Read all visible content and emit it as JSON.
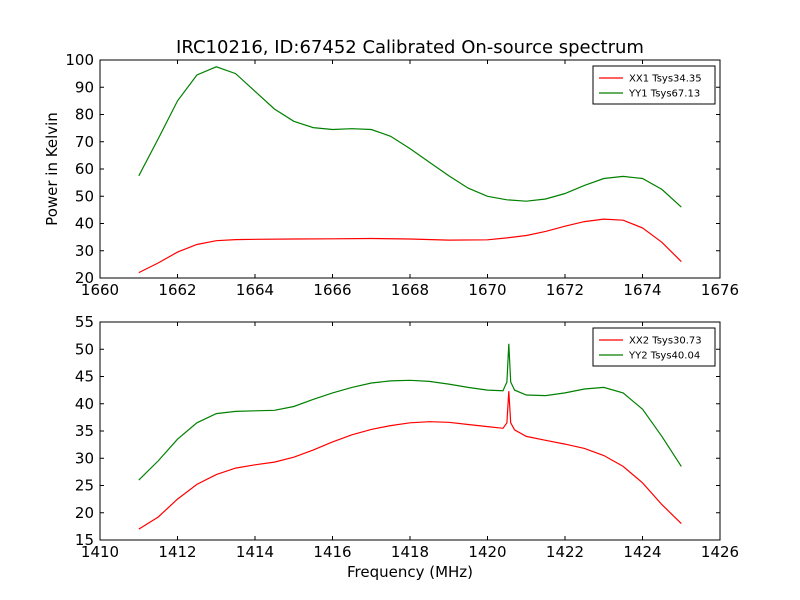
{
  "figure": {
    "title": "IRC10216, ID:67452 Calibrated On-source spectrum"
  },
  "colors": {
    "red": "#ff0000",
    "green": "#008000"
  },
  "chart_data": [
    {
      "type": "line",
      "title": "IRC10216, ID:67452 Calibrated On-source spectrum",
      "xlabel": "",
      "ylabel": "Power in Kelvin",
      "xlim": [
        1660,
        1676
      ],
      "ylim": [
        20,
        100
      ],
      "xticks": [
        "1660",
        "1662",
        "1664",
        "1666",
        "1668",
        "1670",
        "1672",
        "1674",
        "1676"
      ],
      "yticks": [
        "20",
        "30",
        "40",
        "50",
        "60",
        "70",
        "80",
        "90",
        "100"
      ],
      "grid": false,
      "legend_position": "top-right",
      "series": [
        {
          "name": "XX1 Tsys34.35",
          "color": "#ff0000",
          "x": [
            1661.0,
            1661.5,
            1662.0,
            1662.5,
            1663.0,
            1663.5,
            1664.0,
            1665.0,
            1666.0,
            1667.0,
            1668.0,
            1669.0,
            1670.0,
            1670.5,
            1671.0,
            1671.5,
            1672.0,
            1672.5,
            1673.0,
            1673.5,
            1674.0,
            1674.5,
            1675.0
          ],
          "y": [
            22.0,
            25.5,
            29.5,
            32.3,
            33.7,
            34.1,
            34.2,
            34.3,
            34.4,
            34.5,
            34.3,
            33.9,
            34.0,
            34.7,
            35.6,
            37.1,
            39.0,
            40.7,
            41.6,
            41.2,
            38.4,
            33.1,
            26.0
          ]
        },
        {
          "name": "YY1 Tsys67.13",
          "color": "#008000",
          "x": [
            1661.0,
            1661.5,
            1662.0,
            1662.5,
            1663.0,
            1663.5,
            1664.0,
            1664.5,
            1665.0,
            1665.5,
            1666.0,
            1666.5,
            1667.0,
            1667.5,
            1668.0,
            1668.5,
            1669.0,
            1669.5,
            1670.0,
            1670.5,
            1671.0,
            1671.5,
            1672.0,
            1672.5,
            1673.0,
            1673.5,
            1674.0,
            1674.5,
            1675.0
          ],
          "y": [
            57.5,
            71.0,
            85.0,
            94.5,
            97.5,
            95.0,
            88.5,
            82.0,
            77.5,
            75.2,
            74.5,
            74.8,
            74.5,
            72.0,
            67.5,
            62.5,
            57.5,
            53.0,
            50.0,
            48.7,
            48.2,
            49.0,
            51.0,
            54.0,
            56.5,
            57.3,
            56.5,
            52.5,
            46.0
          ]
        }
      ]
    },
    {
      "type": "line",
      "title": "",
      "xlabel": "Frequency (MHz)",
      "ylabel": "",
      "xlim": [
        1410,
        1426
      ],
      "ylim": [
        15,
        55
      ],
      "xticks": [
        "1410",
        "1412",
        "1414",
        "1416",
        "1418",
        "1420",
        "1422",
        "1424",
        "1426"
      ],
      "yticks": [
        "15",
        "20",
        "25",
        "30",
        "35",
        "40",
        "45",
        "50",
        "55"
      ],
      "grid": false,
      "legend_position": "top-right",
      "series": [
        {
          "name": "XX2 Tsys30.73",
          "color": "#ff0000",
          "x": [
            1411.0,
            1411.5,
            1412.0,
            1412.5,
            1413.0,
            1413.5,
            1414.0,
            1414.5,
            1415.0,
            1415.5,
            1416.0,
            1416.5,
            1417.0,
            1417.5,
            1418.0,
            1418.5,
            1419.0,
            1419.5,
            1420.0,
            1420.4,
            1420.5,
            1420.55,
            1420.6,
            1420.7,
            1421.0,
            1421.5,
            1422.0,
            1422.5,
            1423.0,
            1423.5,
            1424.0,
            1424.5,
            1425.0
          ],
          "y": [
            17.0,
            19.2,
            22.5,
            25.2,
            27.0,
            28.2,
            28.8,
            29.3,
            30.2,
            31.5,
            33.0,
            34.3,
            35.3,
            36.0,
            36.5,
            36.7,
            36.6,
            36.2,
            35.8,
            35.5,
            36.5,
            42.3,
            36.5,
            35.2,
            34.0,
            33.3,
            32.6,
            31.8,
            30.5,
            28.5,
            25.5,
            21.5,
            18.0
          ]
        },
        {
          "name": "YY2 Tsys40.04",
          "color": "#008000",
          "x": [
            1411.0,
            1411.5,
            1412.0,
            1412.5,
            1413.0,
            1413.5,
            1414.0,
            1414.5,
            1415.0,
            1415.5,
            1416.0,
            1416.5,
            1417.0,
            1417.5,
            1418.0,
            1418.5,
            1419.0,
            1419.5,
            1420.0,
            1420.4,
            1420.5,
            1420.55,
            1420.6,
            1420.7,
            1421.0,
            1421.5,
            1422.0,
            1422.5,
            1423.0,
            1423.5,
            1424.0,
            1424.5,
            1425.0
          ],
          "y": [
            26.0,
            29.5,
            33.5,
            36.5,
            38.2,
            38.6,
            38.7,
            38.8,
            39.5,
            40.8,
            42.0,
            43.0,
            43.8,
            44.2,
            44.3,
            44.1,
            43.6,
            43.0,
            42.5,
            42.4,
            44.0,
            51.0,
            44.0,
            42.5,
            41.6,
            41.5,
            42.0,
            42.7,
            43.0,
            42.0,
            39.0,
            34.0,
            28.5
          ]
        }
      ]
    }
  ]
}
